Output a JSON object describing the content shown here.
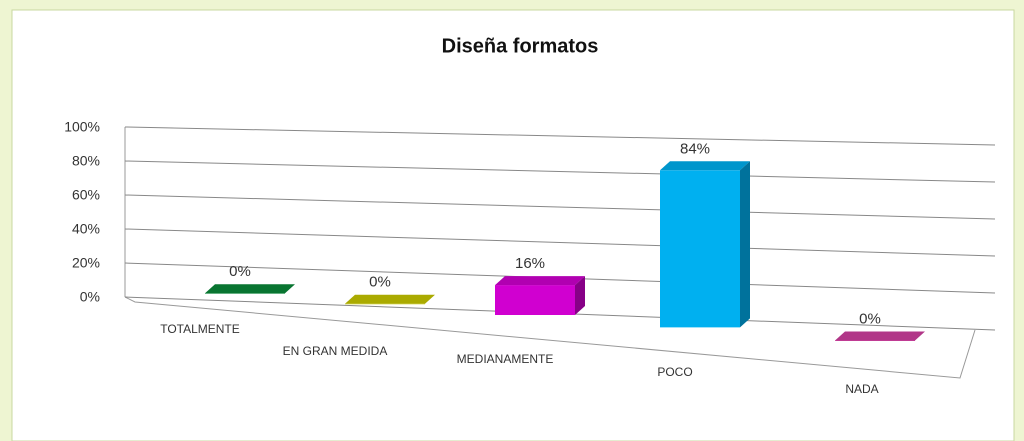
{
  "chart_data": {
    "type": "bar3d",
    "title": "Diseña formatos",
    "categories": [
      "TOTALMENTE",
      "EN GRAN MEDIDA",
      "MEDIANAMENTE",
      "POCO",
      "NADA"
    ],
    "values": [
      0,
      0,
      16,
      84,
      0
    ],
    "value_labels": [
      "0%",
      "0%",
      "16%",
      "84%",
      "0%"
    ],
    "colors": [
      "#0a8a3a",
      "#c8c800",
      "#d000d0",
      "#00b0f0",
      "#d040a0"
    ],
    "ylim": [
      0,
      100
    ],
    "yticks": [
      {
        "value": 0,
        "label": "0%"
      },
      {
        "value": 20,
        "label": "20%"
      },
      {
        "value": 40,
        "label": "40%"
      },
      {
        "value": 60,
        "label": "60%"
      },
      {
        "value": 80,
        "label": "80%"
      },
      {
        "value": 100,
        "label": "100%"
      }
    ],
    "grid": true
  }
}
